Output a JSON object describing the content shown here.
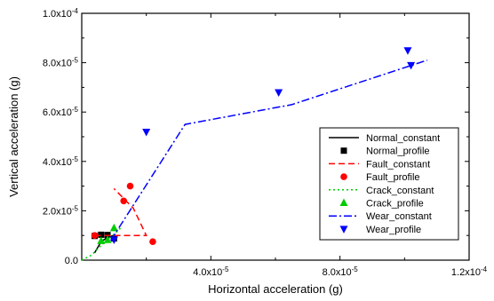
{
  "chart_data": {
    "type": "scatter",
    "xlabel": "Horizontal acceleration (g)",
    "ylabel": "Vertical acceleration (g)",
    "xlim": [
      0,
      0.00012
    ],
    "ylim": [
      0,
      0.0001
    ],
    "x_ticks": [
      {
        "value": 4e-05,
        "mant": "4.0x10",
        "exp": "-5"
      },
      {
        "value": 8e-05,
        "mant": "8.0x10",
        "exp": "-5"
      },
      {
        "value": 0.00012,
        "mant": "1.2x10",
        "exp": "-4"
      }
    ],
    "y_ticks": [
      {
        "value": 0,
        "mant": "0.0",
        "exp": ""
      },
      {
        "value": 2e-05,
        "mant": "2.0x10",
        "exp": "-5"
      },
      {
        "value": 4e-05,
        "mant": "4.0x10",
        "exp": "-5"
      },
      {
        "value": 6e-05,
        "mant": "6.0x10",
        "exp": "-5"
      },
      {
        "value": 8e-05,
        "mant": "8.0x10",
        "exp": "-5"
      },
      {
        "value": 0.0001,
        "mant": "1.0x10",
        "exp": "-4"
      }
    ],
    "legend_position": "lower-right",
    "series": [
      {
        "name": "Normal_constant",
        "kind": "line",
        "color": "#000000",
        "dash": "",
        "points": [
          [
            4e-06,
            3e-06
          ],
          [
            6e-06,
            7.5e-06
          ],
          [
            8e-06,
            9.2e-06
          ],
          [
            1e-05,
            9.5e-06
          ]
        ]
      },
      {
        "name": "Normal_profile",
        "kind": "marker",
        "marker": "square",
        "color": "#000000",
        "points": [
          [
            4e-06,
            9.8e-06
          ],
          [
            6e-06,
            1.03e-05
          ],
          [
            8e-06,
            1.02e-05
          ],
          [
            1e-05,
            8.8e-06
          ]
        ]
      },
      {
        "name": "Fault_constant",
        "kind": "line",
        "color": "#ff0000",
        "dash": "7,4",
        "points": [
          [
            4e-06,
            1e-05
          ],
          [
            2e-05,
            1e-05
          ],
          [
            1.6e-05,
            2.1e-05
          ],
          [
            1e-05,
            2.9e-05
          ]
        ]
      },
      {
        "name": "Fault_profile",
        "kind": "marker",
        "marker": "circle",
        "color": "#ff0000",
        "points": [
          [
            4e-06,
            1e-05
          ],
          [
            1.3e-05,
            2.4e-05
          ],
          [
            1.5e-05,
            3e-05
          ],
          [
            2.2e-05,
            7.5e-06
          ]
        ]
      },
      {
        "name": "Crack_constant",
        "kind": "line",
        "color": "#00cc00",
        "dash": "2,3",
        "points": [
          [
            0.0,
            0.0
          ],
          [
            3e-06,
            2e-06
          ],
          [
            6e-06,
            6e-06
          ],
          [
            1e-05,
            1.05e-05
          ],
          [
            1.2e-05,
            1.3e-05
          ]
        ]
      },
      {
        "name": "Crack_profile",
        "kind": "marker",
        "marker": "triangle-up",
        "color": "#00cc00",
        "points": [
          [
            6e-06,
            7.8e-06
          ],
          [
            8e-06,
            8.2e-06
          ],
          [
            1e-05,
            1.3e-05
          ]
        ]
      },
      {
        "name": "Wear_constant",
        "kind": "line",
        "color": "#0000ff",
        "dash": "9,3,2,3",
        "points": [
          [
            9e-06,
            8e-06
          ],
          [
            3.2e-05,
            5.5e-05
          ],
          [
            6.5e-05,
            6.3e-05
          ],
          [
            0.000107,
            8.1e-05
          ]
        ]
      },
      {
        "name": "Wear_profile",
        "kind": "marker",
        "marker": "triangle-down",
        "color": "#0000ff",
        "points": [
          [
            1e-05,
            8.3e-06
          ],
          [
            2e-05,
            5.2e-05
          ],
          [
            6.1e-05,
            6.8e-05
          ],
          [
            0.000101,
            8.5e-05
          ],
          [
            0.000102,
            7.9e-05
          ]
        ]
      }
    ]
  }
}
